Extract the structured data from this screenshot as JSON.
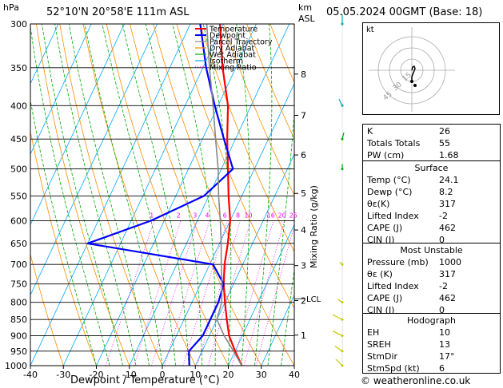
{
  "header": {
    "location": "52°10'N  20°58'E  111m  ASL",
    "datetime": "05.05.2024  00GMT  (Base: 18)",
    "pressure_unit": "hPa",
    "height_unit_line1": "km",
    "height_unit_line2": "ASL"
  },
  "chart_data": {
    "type": "line",
    "chart_kind": "skew-T log-P diagram",
    "xlabel": "Dewpoint / Temperature (°C)",
    "ylabel_right": "Mixing Ratio (g/kg)",
    "y_scale": "log",
    "x_ticks": [
      -40,
      -30,
      -20,
      -10,
      0,
      10,
      20,
      30,
      40
    ],
    "pressure_ticks": [
      300,
      350,
      400,
      450,
      500,
      550,
      600,
      650,
      700,
      750,
      800,
      850,
      900,
      950,
      1000
    ],
    "height_ticks_km": [
      {
        "label": "1",
        "p": 898
      },
      {
        "label": "2",
        "p": 795
      },
      {
        "label": "3",
        "p": 703
      },
      {
        "label": "4",
        "p": 620
      },
      {
        "label": "5",
        "p": 545
      },
      {
        "label": "6",
        "p": 476
      },
      {
        "label": "7",
        "p": 414
      },
      {
        "label": "8",
        "p": 358
      }
    ],
    "lcl": {
      "label": "LCL",
      "p": 790
    },
    "mixing_ratio_labels": [
      "1",
      "2",
      "3",
      "4",
      "6",
      "8",
      "10",
      "16",
      "20",
      "25"
    ],
    "mixing_ratio_values": [
      1,
      2,
      3,
      4,
      6,
      8,
      10,
      16,
      20,
      25
    ],
    "legend": {
      "position": "top-right",
      "entries": [
        {
          "name": "Temperature",
          "color": "#ff0000",
          "style": "solid"
        },
        {
          "name": "Dewpoint",
          "color": "#0000ff",
          "style": "solid"
        },
        {
          "name": "Parcel Trajectory",
          "color": "#888888",
          "style": "solid"
        },
        {
          "name": "Dry Adiabat",
          "color": "#ff8c00",
          "style": "solid"
        },
        {
          "name": "Wet Adiabat",
          "color": "#00aa00",
          "style": "solid"
        },
        {
          "name": "Isotherm",
          "color": "#00a8ff",
          "style": "solid"
        },
        {
          "name": "Mixing Ratio",
          "color": "#ff00ff",
          "style": "dotted"
        }
      ]
    },
    "series": [
      {
        "name": "Temperature",
        "color": "#ff0000",
        "points": [
          [
            1000,
            24.1
          ],
          [
            950,
            20
          ],
          [
            900,
            16
          ],
          [
            850,
            13
          ],
          [
            800,
            10
          ],
          [
            750,
            7
          ],
          [
            700,
            4.5
          ],
          [
            650,
            2.5
          ],
          [
            600,
            0
          ],
          [
            550,
            -4
          ],
          [
            500,
            -8
          ],
          [
            450,
            -12.5
          ],
          [
            400,
            -17
          ],
          [
            350,
            -24
          ],
          [
            300,
            -31
          ]
        ]
      },
      {
        "name": "Dewpoint",
        "color": "#0000ff",
        "points": [
          [
            1000,
            8.2
          ],
          [
            950,
            6
          ],
          [
            900,
            8
          ],
          [
            850,
            8
          ],
          [
            800,
            8
          ],
          [
            750,
            7
          ],
          [
            700,
            1
          ],
          [
            650,
            -40
          ],
          [
            600,
            -24
          ],
          [
            550,
            -11.5
          ],
          [
            500,
            -6.5
          ],
          [
            450,
            -13.5
          ],
          [
            400,
            -21
          ],
          [
            350,
            -29
          ],
          [
            300,
            -37
          ]
        ]
      },
      {
        "name": "Parcel Trajectory",
        "color": "#888888",
        "points": [
          [
            1000,
            24.1
          ],
          [
            950,
            19.5
          ],
          [
            900,
            14.5
          ],
          [
            850,
            10
          ],
          [
            800,
            9
          ],
          [
            750,
            6.5
          ],
          [
            700,
            3.5
          ],
          [
            650,
            0.5
          ],
          [
            600,
            -3
          ],
          [
            550,
            -7
          ],
          [
            500,
            -11
          ],
          [
            450,
            -16
          ],
          [
            400,
            -21.5
          ],
          [
            350,
            -28
          ],
          [
            300,
            -35
          ]
        ]
      }
    ]
  },
  "hodograph": {
    "label": "kt",
    "ring_labels": [
      "15",
      "30",
      "45"
    ],
    "color": "#000000"
  },
  "stats": {
    "indices": [
      {
        "key": "K",
        "value": "26"
      },
      {
        "key": "Totals Totals",
        "value": "55"
      },
      {
        "key": "PW (cm)",
        "value": "1.68"
      }
    ],
    "surface_title": "Surface",
    "surface": [
      {
        "key": "Temp (°C)",
        "value": "24.1"
      },
      {
        "key": "Dewp (°C)",
        "value": "8.2"
      },
      {
        "key": "θε(K)",
        "value": "317"
      },
      {
        "key": "Lifted Index",
        "value": "-2"
      },
      {
        "key": "CAPE (J)",
        "value": "462"
      },
      {
        "key": "CIN (J)",
        "value": "0"
      }
    ],
    "unstable_title": "Most Unstable",
    "unstable": [
      {
        "key": "Pressure (mb)",
        "value": "1000"
      },
      {
        "key": "θε (K)",
        "value": "317"
      },
      {
        "key": "Lifted Index",
        "value": "-2"
      },
      {
        "key": "CAPE (J)",
        "value": "462"
      },
      {
        "key": "CIN (J)",
        "value": "0"
      }
    ],
    "hodograph_title": "Hodograph",
    "hodo": [
      {
        "key": "EH",
        "value": "10"
      },
      {
        "key": "SREH",
        "value": "13"
      },
      {
        "key": "StmDir",
        "value": "17°"
      },
      {
        "key": "StmSpd (kt)",
        "value": "6"
      }
    ]
  },
  "footer": {
    "copyright": "© weatheronline.co.uk"
  }
}
